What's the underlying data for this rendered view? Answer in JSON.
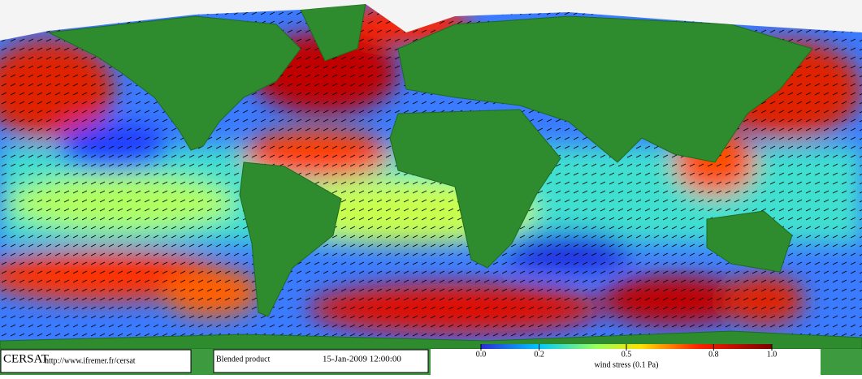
{
  "footer": {
    "logo": "CERSAT",
    "url": "http://www.ifremer.fr/cersat",
    "product": "Blended product",
    "datetime": "15-Jan-2009 12:00:00"
  },
  "colorbar": {
    "label": "wind stress (0.1 Pa)",
    "lim": [
      0,
      1
    ],
    "ticks": [
      {
        "value": 0,
        "label": "0.0"
      },
      0.2,
      0.5,
      0.8,
      {
        "value": 1,
        "label": "1.0"
      }
    ]
  }
}
